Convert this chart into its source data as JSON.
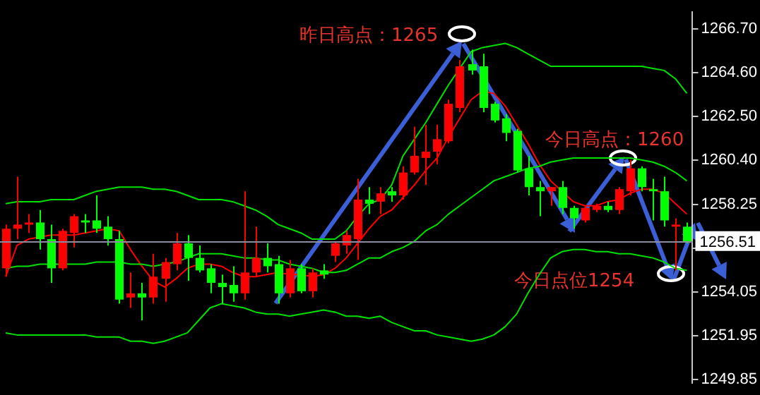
{
  "chart_data": {
    "type": "candlestick",
    "categories": [
      null,
      null,
      null,
      null,
      null,
      null,
      null,
      null,
      null,
      null,
      null,
      null,
      null,
      null,
      null,
      null,
      null,
      null,
      null,
      null,
      null,
      null,
      null,
      null,
      null,
      null,
      null,
      null,
      null,
      null,
      null,
      null,
      null,
      null,
      null,
      null,
      null,
      null,
      null,
      null,
      null,
      null,
      null,
      null,
      null,
      null,
      null,
      null,
      null,
      null,
      null,
      null,
      null,
      null,
      null,
      null,
      null,
      null,
      null,
      null,
      null
    ],
    "ohlc": [
      [
        1255.2,
        1257.3,
        1254.8,
        1257.1
      ],
      [
        1257.1,
        1259.6,
        1256.6,
        1257.3
      ],
      [
        1257.3,
        1257.8,
        1256.9,
        1257.4
      ],
      [
        1257.4,
        1258.0,
        1256.1,
        1256.6
      ],
      [
        1256.6,
        1257.3,
        1254.5,
        1255.2
      ],
      [
        1255.2,
        1257.1,
        1255.1,
        1257.0
      ],
      [
        1256.9,
        1257.8,
        1256.2,
        1257.7
      ],
      [
        1257.5,
        1257.8,
        1256.9,
        1257.4
      ],
      [
        1257.5,
        1258.7,
        1256.9,
        1257.1
      ],
      [
        1257.2,
        1257.7,
        1256.3,
        1256.6
      ],
      [
        1256.6,
        1257.0,
        1253.5,
        1253.7
      ],
      [
        1253.8,
        1255.0,
        1253.3,
        1254.0
      ],
      [
        1254.0,
        1254.5,
        1252.7,
        1253.8
      ],
      [
        1253.8,
        1255.9,
        1253.5,
        1254.8
      ],
      [
        1254.7,
        1255.7,
        1253.6,
        1255.5
      ],
      [
        1255.4,
        1256.9,
        1255.1,
        1256.4
      ],
      [
        1256.4,
        1256.8,
        1254.6,
        1255.7
      ],
      [
        1255.7,
        1256.3,
        1255.0,
        1255.1
      ],
      [
        1255.2,
        1255.4,
        1254.0,
        1254.5
      ],
      [
        1254.5,
        1254.9,
        1253.5,
        1254.3
      ],
      [
        1254.4,
        1255.3,
        1253.6,
        1254.0
      ],
      [
        1254.0,
        1258.9,
        1253.7,
        1255.0
      ],
      [
        1255.0,
        1257.2,
        1254.8,
        1255.7
      ],
      [
        1255.7,
        1256.4,
        1255.0,
        1255.3
      ],
      [
        1255.4,
        1255.8,
        1253.5,
        1254.0
      ],
      [
        1254.0,
        1255.6,
        1253.8,
        1255.2
      ],
      [
        1255.2,
        1255.4,
        1254.0,
        1254.1
      ],
      [
        1254.1,
        1255.2,
        1253.8,
        1255.0
      ],
      [
        1255.1,
        1255.4,
        1254.7,
        1254.9
      ],
      [
        1255.8,
        1256.5,
        1255.5,
        1256.4
      ],
      [
        1256.3,
        1257.0,
        1255.9,
        1256.8
      ],
      [
        1256.6,
        1259.5,
        1255.6,
        1258.5
      ],
      [
        1258.5,
        1259.1,
        1257.8,
        1258.3
      ],
      [
        1258.4,
        1259.1,
        1257.8,
        1258.8
      ],
      [
        1258.9,
        1259.1,
        1258.4,
        1258.7
      ],
      [
        1258.7,
        1260.1,
        1258.5,
        1259.8
      ],
      [
        1259.8,
        1262.0,
        1259.7,
        1260.6
      ],
      [
        1260.5,
        1262.1,
        1259.2,
        1260.8
      ],
      [
        1260.8,
        1262.1,
        1260.2,
        1261.4
      ],
      [
        1261.3,
        1263.3,
        1261.2,
        1263.1
      ],
      [
        1262.9,
        1265.2,
        1262.7,
        1264.9
      ],
      [
        1265.0,
        1265.7,
        1264.5,
        1264.7
      ],
      [
        1264.9,
        1265.5,
        1262.7,
        1262.9
      ],
      [
        1263.1,
        1263.2,
        1262.2,
        1262.3
      ],
      [
        1262.4,
        1262.6,
        1261.3,
        1261.7
      ],
      [
        1261.8,
        1261.9,
        1259.8,
        1259.9
      ],
      [
        1260.0,
        1260.6,
        1258.7,
        1259.1
      ],
      [
        1259.1,
        1259.4,
        1257.7,
        1258.9
      ],
      [
        1258.9,
        1259.1,
        1258.2,
        1259.1
      ],
      [
        1259.1,
        1259.4,
        1257.8,
        1258.1
      ],
      [
        1258.1,
        1258.2,
        1257.1,
        1257.6
      ],
      [
        1257.5,
        1258.2,
        1257.4,
        1258.1
      ],
      [
        1258.0,
        1258.3,
        1257.9,
        1258.2
      ],
      [
        1258.2,
        1258.4,
        1257.9,
        1258.0
      ],
      [
        1258.0,
        1259.1,
        1257.8,
        1259.0
      ],
      [
        1258.9,
        1260.4,
        1258.7,
        1260.0
      ],
      [
        1260.0,
        1260.1,
        1258.9,
        1259.1
      ],
      [
        1259.0,
        1259.5,
        1257.5,
        1258.9
      ],
      [
        1258.9,
        1259.6,
        1257.2,
        1257.5
      ],
      [
        1257.2,
        1257.6,
        1255.1,
        1257.3
      ],
      [
        1257.2,
        1257.4,
        1256.4,
        1256.5
      ]
    ],
    "colors": [
      "#ff0000",
      "#ff0000",
      "#ff0000",
      "#00ff00",
      "#00ff00",
      "#ff0000",
      "#ff0000",
      "#00ff00",
      "#00ff00",
      "#00ff00",
      "#00ff00",
      "#ff0000",
      "#00ff00",
      "#ff0000",
      "#ff0000",
      "#ff0000",
      "#00ff00",
      "#00ff00",
      "#00ff00",
      "#00ff00",
      "#00ff00",
      "#ff0000",
      "#ff0000",
      "#00ff00",
      "#00ff00",
      "#ff0000",
      "#00ff00",
      "#ff0000",
      "#00ff00",
      "#ff0000",
      "#ff0000",
      "#ff0000",
      "#00ff00",
      "#ff0000",
      "#00ff00",
      "#ff0000",
      "#ff0000",
      "#ff0000",
      "#ff0000",
      "#ff0000",
      "#ff0000",
      "#00ff00",
      "#00ff00",
      "#00ff00",
      "#00ff00",
      "#00ff00",
      "#00ff00",
      "#00ff00",
      "#ff0000",
      "#00ff00",
      "#00ff00",
      "#ff0000",
      "#ff0000",
      "#00ff00",
      "#ff0000",
      "#ff0000",
      "#00ff00",
      "#00ff00",
      "#00ff00",
      "#ff0000",
      "#00ff00"
    ],
    "series": [
      {
        "type": "line",
        "color": "#00e000",
        "values": [
          1258.3,
          1258.4,
          1258.4,
          1258.4,
          1258.5,
          1258.5,
          1258.5,
          1258.7,
          1258.9,
          1259.0,
          1259.1,
          1259.1,
          1259.1,
          1259.0,
          1259.0,
          1258.9,
          1258.7,
          1258.5,
          1258.5,
          1258.5,
          1258.4,
          1258.2,
          1258.0,
          1257.7,
          1257.3,
          1257.1,
          1256.9,
          1256.6,
          1256.6,
          1256.6,
          1257.0,
          1257.7,
          1258.3,
          1258.5,
          1259.2,
          1260.6,
          1261.4,
          1262.2,
          1263.1,
          1264.0,
          1264.8,
          1265.6,
          1265.8,
          1265.9,
          1266.0,
          1265.8,
          1265.5,
          1265.2,
          1264.9,
          1264.9,
          1264.9,
          1264.9,
          1264.9,
          1264.9,
          1264.9,
          1264.9,
          1264.9,
          1264.8,
          1264.7,
          1264.3,
          1263.6
        ]
      },
      {
        "type": "line",
        "color": "#00e000",
        "values": [
          1255.2,
          1255.3,
          1255.3,
          1255.4,
          1255.4,
          1255.4,
          1255.4,
          1255.4,
          1255.5,
          1255.5,
          1255.5,
          1255.4,
          1255.4,
          1255.3,
          1255.4,
          1255.5,
          1255.7,
          1255.9,
          1255.9,
          1255.9,
          1255.8,
          1255.7,
          1255.7,
          1255.6,
          1255.6,
          1255.4,
          1255.3,
          1255.2,
          1255.0,
          1255.0,
          1255.1,
          1255.4,
          1255.7,
          1255.7,
          1256.0,
          1256.2,
          1256.5,
          1257.0,
          1257.3,
          1257.8,
          1258.2,
          1258.6,
          1259.0,
          1259.4,
          1259.6,
          1259.8,
          1260.0,
          1260.1,
          1260.3,
          1260.4,
          1260.5,
          1260.5,
          1260.5,
          1260.5,
          1260.5,
          1260.5,
          1260.4,
          1260.3,
          1260.1,
          1259.8,
          1259.4
        ]
      },
      {
        "type": "line",
        "color": "#00e000",
        "values": [
          1252.1,
          1252.0,
          1252.0,
          1252.0,
          1252.0,
          1252.0,
          1252.0,
          1252.0,
          1251.9,
          1251.9,
          1251.9,
          1251.7,
          1251.7,
          1251.6,
          1251.7,
          1251.9,
          1252.1,
          1252.7,
          1253.3,
          1253.5,
          1253.4,
          1253.3,
          1253.1,
          1253.0,
          1253.0,
          1252.9,
          1253.0,
          1253.1,
          1253.2,
          1253.1,
          1252.9,
          1252.9,
          1252.8,
          1252.9,
          1252.6,
          1252.4,
          1252.2,
          1252.2,
          1252.0,
          1251.9,
          1251.8,
          1251.7,
          1251.8,
          1252.0,
          1252.4,
          1253.0,
          1254.0,
          1254.9,
          1255.7,
          1256.0,
          1256.1,
          1256.1,
          1256.0,
          1256.0,
          1255.9,
          1255.9,
          1255.8,
          1255.7,
          1255.5,
          1255.2,
          1255.1
        ]
      },
      {
        "type": "line",
        "color": "#ff0000",
        "values": [
          1254.8,
          1256.3,
          1256.6,
          1256.7,
          1256.8,
          1256.8,
          1256.8,
          1256.9,
          1257.0,
          1257.1,
          1257.0,
          1256.1,
          1255.3,
          1254.6,
          1254.3,
          1254.7,
          1255.2,
          1255.4,
          1255.4,
          1255.3,
          1255.0,
          1254.8,
          1254.8,
          1254.9,
          1255.0,
          1254.9,
          1254.9,
          1254.8,
          1254.9,
          1255.2,
          1255.7,
          1256.4,
          1257.1,
          1257.7,
          1258.0,
          1258.6,
          1259.2,
          1259.9,
          1260.5,
          1261.5,
          1262.4,
          1263.3,
          1263.7,
          1263.6,
          1263.0,
          1262.1,
          1261.2,
          1260.2,
          1259.4,
          1258.9,
          1258.4,
          1258.2,
          1258.2,
          1258.4,
          1258.5,
          1258.8,
          1259.0,
          1259.0,
          1258.8,
          1258.3,
          1257.8
        ]
      }
    ],
    "ylim": [
      1249.7,
      1267.5
    ],
    "yticks": [
      {
        "value": 1266.7,
        "label": "1266.70"
      },
      {
        "value": 1264.6,
        "label": "1264.60"
      },
      {
        "value": 1262.5,
        "label": "1262.50"
      },
      {
        "value": 1260.4,
        "label": "1260.40"
      },
      {
        "value": 1258.25,
        "label": "1258.25"
      },
      {
        "value": 1256.15,
        "label": null
      },
      {
        "value": 1254.05,
        "label": "1254.05"
      },
      {
        "value": 1251.95,
        "label": "1251.95"
      },
      {
        "value": 1249.85,
        "label": "1249.85"
      }
    ],
    "ref_lines": [
      {
        "axis": "y",
        "value": 1256.51,
        "label": "1256.51",
        "color": "#8c8ca0"
      }
    ],
    "annotations": [
      "昨日高点：1265",
      "今日高点：1260",
      "今日点位1254"
    ],
    "tick_labels": "y",
    "legend": false,
    "grid": false,
    "marker": "none",
    "line_style": "solid"
  }
}
